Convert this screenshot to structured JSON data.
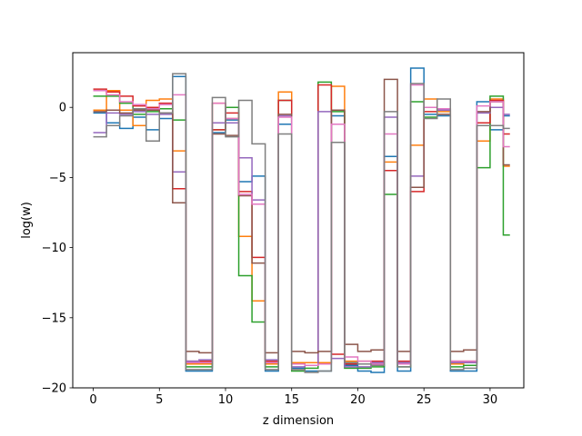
{
  "chart_data": {
    "type": "line",
    "step": "post",
    "xlabel": "z dimension",
    "ylabel": "log(w)",
    "xlim": [
      -1.55,
      32.55
    ],
    "ylim": [
      -20,
      3.9
    ],
    "xticks": [
      0,
      5,
      10,
      15,
      20,
      25,
      30
    ],
    "xtick_labels": [
      "0",
      "5",
      "10",
      "15",
      "20",
      "25",
      "30"
    ],
    "yticks": [
      0,
      -5,
      -10,
      -15,
      -20
    ],
    "ytick_labels": [
      "0",
      "−5",
      "−10",
      "−15",
      "−20"
    ],
    "grid": false,
    "series": [
      {
        "color": "#1f77b4",
        "values": [
          -0.4,
          -1.1,
          -1.5,
          -0.7,
          -1.6,
          -0.8,
          2.2,
          -18.8,
          -18.8,
          -1.8,
          -0.9,
          -5.3,
          -4.9,
          -18.8,
          -1.2,
          -18.6,
          -18.8,
          -18.8,
          -0.6,
          -18.4,
          -18.8,
          -18.9,
          -3.5,
          -18.8,
          2.8,
          -0.5,
          -0.6,
          -18.8,
          -18.8,
          0.4,
          -1.6,
          -0.6
        ]
      },
      {
        "color": "#ff7f0e",
        "values": [
          -0.2,
          1.2,
          -0.2,
          -1.3,
          0.5,
          0.6,
          -3.1,
          -18.3,
          -18.3,
          0.3,
          -0.8,
          -9.2,
          -13.8,
          -18.3,
          1.1,
          -18.2,
          -18.2,
          -18.2,
          1.5,
          -18.1,
          -18.1,
          -18.2,
          -3.9,
          -18.2,
          -2.7,
          0.6,
          -0.3,
          -18.3,
          -18.2,
          -2.4,
          0.6,
          -4.2
        ]
      },
      {
        "color": "#2ca02c",
        "values": [
          0.8,
          0.8,
          0.3,
          -0.5,
          -0.3,
          -0.1,
          -0.9,
          -18.5,
          -18.5,
          -1.6,
          0.0,
          -12.0,
          -15.3,
          -18.5,
          0.5,
          -18.8,
          -18.6,
          1.8,
          -0.3,
          -18.6,
          -18.6,
          -18.5,
          -6.2,
          -18.5,
          0.4,
          -0.7,
          -0.2,
          -18.5,
          -18.4,
          -4.3,
          0.8,
          -9.1
        ]
      },
      {
        "color": "#d62728",
        "values": [
          1.3,
          1.1,
          0.8,
          0.1,
          0.0,
          0.3,
          -5.8,
          -18.1,
          -18.1,
          -1.6,
          -0.4,
          -6.0,
          -10.7,
          -18.1,
          0.5,
          -18.3,
          -18.4,
          1.6,
          -17.6,
          -18.3,
          -18.3,
          -18.1,
          -4.5,
          -18.1,
          -6.0,
          -0.3,
          -0.1,
          -18.1,
          -18.1,
          -1.1,
          0.5,
          -1.9
        ]
      },
      {
        "color": "#9467bd",
        "values": [
          -1.8,
          -0.4,
          -0.5,
          -0.3,
          -0.5,
          -0.5,
          -4.6,
          -18.1,
          -18.0,
          -1.1,
          -1.1,
          -3.6,
          -6.6,
          -18.0,
          -0.6,
          -18.5,
          -18.4,
          -0.3,
          -17.9,
          -18.5,
          -18.5,
          -18.2,
          -0.7,
          -18.2,
          -4.9,
          0.0,
          -0.2,
          -18.2,
          -18.2,
          -0.4,
          0.0,
          -0.5
        ]
      },
      {
        "color": "#8c564b",
        "values": [
          -0.3,
          -0.2,
          -0.4,
          -0.2,
          -0.2,
          -0.4,
          -6.8,
          -17.4,
          -17.5,
          -1.9,
          -2.0,
          -6.3,
          -11.1,
          -17.5,
          -0.5,
          -17.4,
          -17.5,
          -17.4,
          -0.2,
          -16.9,
          -17.4,
          -17.3,
          2.0,
          -17.4,
          -5.7,
          0.0,
          -0.5,
          -17.4,
          -17.3,
          -0.3,
          0.4,
          -4.1
        ]
      },
      {
        "color": "#e377c2",
        "values": [
          1.2,
          0.9,
          0.4,
          0.2,
          -0.1,
          0.2,
          0.9,
          -18.2,
          -18.2,
          0.3,
          -0.8,
          -6.2,
          -6.9,
          -18.2,
          -0.7,
          -18.3,
          -18.4,
          -18.3,
          -1.2,
          -17.8,
          -18.1,
          -18.3,
          -1.9,
          -18.3,
          1.6,
          0.0,
          -0.1,
          -18.1,
          -18.1,
          0.1,
          0.4,
          -2.8
        ]
      },
      {
        "color": "#7f7f7f",
        "values": [
          -2.1,
          -1.3,
          -0.6,
          -0.1,
          -2.4,
          -0.4,
          2.4,
          -18.7,
          -18.7,
          0.7,
          -2.1,
          0.5,
          -2.6,
          -18.7,
          -1.9,
          -18.7,
          -18.9,
          -18.8,
          -2.5,
          -18.2,
          -18.3,
          -18.4,
          -0.3,
          -18.5,
          1.7,
          -0.8,
          0.6,
          -18.7,
          -18.6,
          -1.3,
          -1.3,
          -1.5
        ]
      }
    ]
  }
}
